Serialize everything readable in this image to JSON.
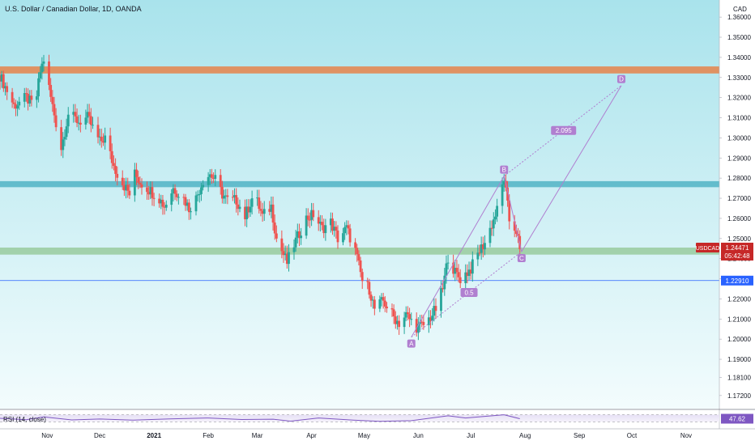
{
  "chart_data": {
    "type": "candlestick",
    "title": "U.S. Dollar / Canadian Dollar, 1D, OANDA",
    "symbol": "USDCAD",
    "currency": "CAD",
    "price_axis": {
      "ylim": [
        1.1655,
        1.3685
      ],
      "ticks": [
        "1.17200",
        "1.18100",
        "1.19000",
        "1.20000",
        "1.21000",
        "1.22000",
        "1.23000",
        "1.24000",
        "1.25000",
        "1.26000",
        "1.27000",
        "1.28000",
        "1.29000",
        "1.30000",
        "1.31000",
        "1.32000",
        "1.33000",
        "1.34000",
        "1.35000",
        "1.36000"
      ]
    },
    "time_axis": {
      "x_range": [
        "2020-10-05",
        "2021-11-20"
      ],
      "labels": [
        {
          "date": "2020-11-01",
          "text": "Nov"
        },
        {
          "date": "2020-12-01",
          "text": "Dec"
        },
        {
          "date": "2021-01-01",
          "text": "2021"
        },
        {
          "date": "2021-02-01",
          "text": "Feb"
        },
        {
          "date": "2021-03-01",
          "text": "Mar"
        },
        {
          "date": "2021-04-01",
          "text": "Apr"
        },
        {
          "date": "2021-05-01",
          "text": "May"
        },
        {
          "date": "2021-06-01",
          "text": "Jun"
        },
        {
          "date": "2021-07-01",
          "text": "Jul"
        },
        {
          "date": "2021-08-01",
          "text": "Aug"
        },
        {
          "date": "2021-09-01",
          "text": "Sep"
        },
        {
          "date": "2021-10-01",
          "text": "Oct"
        },
        {
          "date": "2021-11-01",
          "text": "Nov"
        }
      ]
    },
    "price_path": [
      [
        "2020-10-05",
        1.331
      ],
      [
        "2020-10-13",
        1.316
      ],
      [
        "2020-10-20",
        1.32
      ],
      [
        "2020-10-25",
        1.315
      ],
      [
        "2020-10-28",
        1.333
      ],
      [
        "2020-10-30",
        1.339
      ],
      [
        "2020-11-03",
        1.32
      ],
      [
        "2020-11-09",
        1.295
      ],
      [
        "2020-11-13",
        1.312
      ],
      [
        "2020-11-19",
        1.308
      ],
      [
        "2020-11-24",
        1.31
      ],
      [
        "2020-12-01",
        1.298
      ],
      [
        "2020-12-04",
        1.3
      ],
      [
        "2020-12-09",
        1.286
      ],
      [
        "2020-12-13",
        1.279
      ],
      [
        "2020-12-18",
        1.272
      ],
      [
        "2020-12-21",
        1.282
      ],
      [
        "2020-12-24",
        1.278
      ],
      [
        "2020-12-31",
        1.273
      ],
      [
        "2021-01-04",
        1.27
      ],
      [
        "2021-01-07",
        1.266
      ],
      [
        "2021-01-12",
        1.275
      ],
      [
        "2021-01-18",
        1.27
      ],
      [
        "2021-01-21",
        1.265
      ],
      [
        "2021-01-25",
        1.27
      ],
      [
        "2021-01-29",
        1.279
      ],
      [
        "2021-02-02",
        1.282
      ],
      [
        "2021-02-05",
        1.279
      ],
      [
        "2021-02-09",
        1.272
      ],
      [
        "2021-02-12",
        1.269
      ],
      [
        "2021-02-17",
        1.269
      ],
      [
        "2021-02-22",
        1.261
      ],
      [
        "2021-02-26",
        1.27
      ],
      [
        "2021-03-01",
        1.268
      ],
      [
        "2021-03-04",
        1.261
      ],
      [
        "2021-03-09",
        1.266
      ],
      [
        "2021-03-12",
        1.25
      ],
      [
        "2021-03-18",
        1.238
      ],
      [
        "2021-03-22",
        1.247
      ],
      [
        "2021-03-29",
        1.26
      ],
      [
        "2021-04-02",
        1.262
      ],
      [
        "2021-04-07",
        1.255
      ],
      [
        "2021-04-12",
        1.258
      ],
      [
        "2021-04-16",
        1.25
      ],
      [
        "2021-04-21",
        1.255
      ],
      [
        "2021-04-26",
        1.244
      ],
      [
        "2021-04-30",
        1.229
      ],
      [
        "2021-05-04",
        1.225
      ],
      [
        "2021-05-07",
        1.215
      ],
      [
        "2021-05-12",
        1.219
      ],
      [
        "2021-05-18",
        1.211
      ],
      [
        "2021-05-21",
        1.208
      ],
      [
        "2021-05-25",
        1.212
      ],
      [
        "2021-05-31",
        1.206
      ],
      [
        "2021-06-04",
        1.207
      ],
      [
        "2021-06-08",
        1.211
      ],
      [
        "2021-06-11",
        1.215
      ],
      [
        "2021-06-15",
        1.225
      ],
      [
        "2021-06-18",
        1.241
      ],
      [
        "2021-06-22",
        1.233
      ],
      [
        "2021-06-25",
        1.23
      ],
      [
        "2021-07-01",
        1.235
      ],
      [
        "2021-07-06",
        1.244
      ],
      [
        "2021-07-09",
        1.248
      ],
      [
        "2021-07-13",
        1.257
      ],
      [
        "2021-07-16",
        1.264
      ],
      [
        "2021-07-20",
        1.28
      ],
      [
        "2021-07-23",
        1.259
      ],
      [
        "2021-07-27",
        1.254
      ],
      [
        "2021-07-29",
        1.2447
      ]
    ],
    "horizontal_zones": [
      {
        "name": "resistance-1.333",
        "from": 1.332,
        "to": 1.3355,
        "color": "#e28d5b"
      },
      {
        "name": "resistance-1.277",
        "from": 1.2755,
        "to": 1.2785,
        "color": "#5db8c9"
      },
      {
        "name": "support-1.245",
        "from": 1.242,
        "to": 1.2455,
        "color": "#9fcfa7"
      }
    ],
    "horizontal_line": {
      "price": 1.2291,
      "label": "1.22910",
      "color": "#2962ff"
    },
    "abcd_pattern": {
      "color": "#b07fd0",
      "points": [
        {
          "label": "A",
          "date": "2021-05-28",
          "price": 1.201
        },
        {
          "label": "B",
          "date": "2021-07-20",
          "price": 1.281
        },
        {
          "label": "C",
          "date": "2021-07-30",
          "price": 1.2435
        },
        {
          "label": "D",
          "date": "2021-09-25",
          "price": 1.326
        }
      ],
      "ratios": [
        {
          "text": "0.5",
          "date": "2021-06-30",
          "price": 1.223
        },
        {
          "text": "2.095",
          "date": "2021-08-23",
          "price": 1.3035
        }
      ]
    },
    "current_price": {
      "value": "1.24471",
      "countdown": "05:42:48",
      "color": "#c62828"
    },
    "rsi": {
      "label": "RSI (14, close)",
      "value": "47.62",
      "color": "#7e57c2",
      "ylim": [
        0,
        100
      ],
      "upper": 70,
      "lower": 30,
      "series": [
        [
          "2020-10-05",
          50
        ],
        [
          "2020-10-20",
          42
        ],
        [
          "2020-10-30",
          58
        ],
        [
          "2020-11-15",
          41
        ],
        [
          "2020-12-01",
          46
        ],
        [
          "2020-12-20",
          40
        ],
        [
          "2021-01-10",
          47
        ],
        [
          "2021-02-01",
          52
        ],
        [
          "2021-02-20",
          43
        ],
        [
          "2021-03-10",
          45
        ],
        [
          "2021-03-20",
          34
        ],
        [
          "2021-04-05",
          52
        ],
        [
          "2021-04-25",
          40
        ],
        [
          "2021-05-10",
          33
        ],
        [
          "2021-05-28",
          37
        ],
        [
          "2021-06-18",
          64
        ],
        [
          "2021-06-28",
          52
        ],
        [
          "2021-07-20",
          70
        ],
        [
          "2021-07-29",
          47.62
        ]
      ]
    }
  }
}
